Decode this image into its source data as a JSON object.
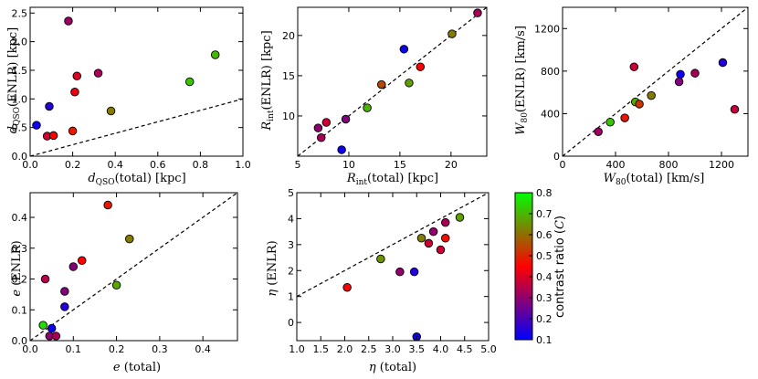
{
  "colorbar": {
    "label": "contrast ratio (C)",
    "range": [
      0.1,
      0.8
    ],
    "ticks": [
      0.1,
      0.2,
      0.3,
      0.4,
      0.5,
      0.6,
      0.7,
      0.8
    ],
    "colormap": [
      "#0000ff",
      "#ff0000",
      "#00ff00"
    ]
  },
  "chart_data": [
    {
      "type": "scatter",
      "id": "d",
      "xlabel": "d_QSO(total) [kpc]",
      "ylabel": "d_QSO(ENLR) [kpc]",
      "xlim": [
        0,
        1.0
      ],
      "ylim": [
        0,
        2.6
      ],
      "xticks": [
        0.0,
        0.2,
        0.4,
        0.6,
        0.8,
        1.0
      ],
      "yticks": [
        0.0,
        0.5,
        1.0,
        1.5,
        2.0,
        2.5
      ],
      "reference_line": [
        [
          0,
          0
        ],
        [
          1.0,
          1.0
        ]
      ],
      "points": [
        {
          "x": 0.03,
          "y": 0.54,
          "c": 0.12
        },
        {
          "x": 0.09,
          "y": 0.87,
          "c": 0.15
        },
        {
          "x": 0.08,
          "y": 0.35,
          "c": 0.38
        },
        {
          "x": 0.11,
          "y": 0.36,
          "c": 0.45
        },
        {
          "x": 0.18,
          "y": 2.36,
          "c": 0.32
        },
        {
          "x": 0.2,
          "y": 0.44,
          "c": 0.48
        },
        {
          "x": 0.21,
          "y": 1.12,
          "c": 0.43
        },
        {
          "x": 0.22,
          "y": 1.4,
          "c": 0.4
        },
        {
          "x": 0.32,
          "y": 1.45,
          "c": 0.33
        },
        {
          "x": 0.38,
          "y": 0.79,
          "c": 0.62
        },
        {
          "x": 0.75,
          "y": 1.3,
          "c": 0.72
        },
        {
          "x": 0.87,
          "y": 1.77,
          "c": 0.7
        }
      ]
    },
    {
      "type": "scatter",
      "id": "R",
      "xlabel": "R_int(total) [kpc]",
      "ylabel": "R_int(ENLR) [kpc]",
      "xlim": [
        5,
        23.5
      ],
      "ylim": [
        5,
        23.5
      ],
      "xticks": [
        5,
        10,
        15,
        20
      ],
      "yticks": [
        10,
        15,
        20
      ],
      "reference_line": [
        [
          5,
          5
        ],
        [
          23.5,
          23.5
        ]
      ],
      "points": [
        {
          "x": 7.0,
          "y": 8.5,
          "c": 0.3
        },
        {
          "x": 7.3,
          "y": 7.3,
          "c": 0.33
        },
        {
          "x": 7.8,
          "y": 9.2,
          "c": 0.38
        },
        {
          "x": 9.3,
          "y": 5.8,
          "c": 0.12
        },
        {
          "x": 9.7,
          "y": 9.6,
          "c": 0.28
        },
        {
          "x": 11.8,
          "y": 11.0,
          "c": 0.7
        },
        {
          "x": 13.2,
          "y": 13.9,
          "c": 0.55
        },
        {
          "x": 15.4,
          "y": 18.3,
          "c": 0.12
        },
        {
          "x": 15.9,
          "y": 14.1,
          "c": 0.67
        },
        {
          "x": 17.0,
          "y": 16.1,
          "c": 0.45
        },
        {
          "x": 20.1,
          "y": 20.2,
          "c": 0.62
        },
        {
          "x": 22.6,
          "y": 22.8,
          "c": 0.33
        }
      ]
    },
    {
      "type": "scatter",
      "id": "W80",
      "xlabel": "W_80(total) [km/s]",
      "ylabel": "W_80(ENLR) [km/s]",
      "xlim": [
        0,
        1400
      ],
      "ylim": [
        0,
        1400
      ],
      "xticks": [
        0,
        400,
        800,
        1200
      ],
      "yticks": [
        0,
        400,
        800,
        1200
      ],
      "reference_line": [
        [
          0,
          0
        ],
        [
          1400,
          1400
        ]
      ],
      "points": [
        {
          "x": 270,
          "y": 230,
          "c": 0.32
        },
        {
          "x": 360,
          "y": 320,
          "c": 0.72
        },
        {
          "x": 470,
          "y": 360,
          "c": 0.48
        },
        {
          "x": 540,
          "y": 840,
          "c": 0.38
        },
        {
          "x": 550,
          "y": 510,
          "c": 0.68
        },
        {
          "x": 580,
          "y": 490,
          "c": 0.52
        },
        {
          "x": 670,
          "y": 570,
          "c": 0.62
        },
        {
          "x": 880,
          "y": 700,
          "c": 0.28
        },
        {
          "x": 890,
          "y": 770,
          "c": 0.12
        },
        {
          "x": 1000,
          "y": 780,
          "c": 0.33
        },
        {
          "x": 1210,
          "y": 880,
          "c": 0.15
        },
        {
          "x": 1300,
          "y": 440,
          "c": 0.37
        }
      ]
    },
    {
      "type": "scatter",
      "id": "e",
      "xlabel": "e (total)",
      "ylabel": "e (ENLR)",
      "xlim": [
        0,
        0.48
      ],
      "ylim": [
        0,
        0.48
      ],
      "xticks": [
        0.0,
        0.1,
        0.2,
        0.3,
        0.4
      ],
      "yticks": [
        0.0,
        0.1,
        0.2,
        0.3,
        0.4
      ],
      "reference_line": [
        [
          0,
          0
        ],
        [
          0.48,
          0.48
        ]
      ],
      "points": [
        {
          "x": 0.03,
          "y": 0.05,
          "c": 0.75
        },
        {
          "x": 0.035,
          "y": 0.2,
          "c": 0.35
        },
        {
          "x": 0.045,
          "y": 0.015,
          "c": 0.3
        },
        {
          "x": 0.05,
          "y": 0.04,
          "c": 0.12
        },
        {
          "x": 0.06,
          "y": 0.015,
          "c": 0.33
        },
        {
          "x": 0.08,
          "y": 0.16,
          "c": 0.28
        },
        {
          "x": 0.08,
          "y": 0.11,
          "c": 0.15
        },
        {
          "x": 0.1,
          "y": 0.24,
          "c": 0.28
        },
        {
          "x": 0.12,
          "y": 0.26,
          "c": 0.45
        },
        {
          "x": 0.18,
          "y": 0.44,
          "c": 0.48
        },
        {
          "x": 0.2,
          "y": 0.18,
          "c": 0.68
        },
        {
          "x": 0.23,
          "y": 0.33,
          "c": 0.62
        }
      ]
    },
    {
      "type": "scatter",
      "id": "eta",
      "xlabel": "η (total)",
      "ylabel": "η (ENLR)",
      "xlim": [
        1.0,
        5.0
      ],
      "ylim": [
        -0.7,
        5.0
      ],
      "xticks": [
        1.0,
        1.5,
        2.0,
        2.5,
        3.0,
        3.5,
        4.0,
        4.5,
        5.0
      ],
      "yticks": [
        0,
        1,
        2,
        3,
        4,
        5
      ],
      "reference_line": [
        [
          1.0,
          1.0
        ],
        [
          5.0,
          5.0
        ]
      ],
      "points": [
        {
          "x": 2.05,
          "y": 1.35,
          "c": 0.45
        },
        {
          "x": 2.75,
          "y": 2.45,
          "c": 0.65
        },
        {
          "x": 3.15,
          "y": 1.95,
          "c": 0.3
        },
        {
          "x": 3.45,
          "y": 1.95,
          "c": 0.15
        },
        {
          "x": 3.5,
          "y": -0.55,
          "c": 0.12
        },
        {
          "x": 3.6,
          "y": 3.25,
          "c": 0.62
        },
        {
          "x": 3.75,
          "y": 3.05,
          "c": 0.38
        },
        {
          "x": 3.85,
          "y": 3.5,
          "c": 0.3
        },
        {
          "x": 4.0,
          "y": 2.8,
          "c": 0.38
        },
        {
          "x": 4.1,
          "y": 3.25,
          "c": 0.47
        },
        {
          "x": 4.1,
          "y": 3.85,
          "c": 0.33
        },
        {
          "x": 4.4,
          "y": 4.05,
          "c": 0.67
        }
      ]
    }
  ]
}
